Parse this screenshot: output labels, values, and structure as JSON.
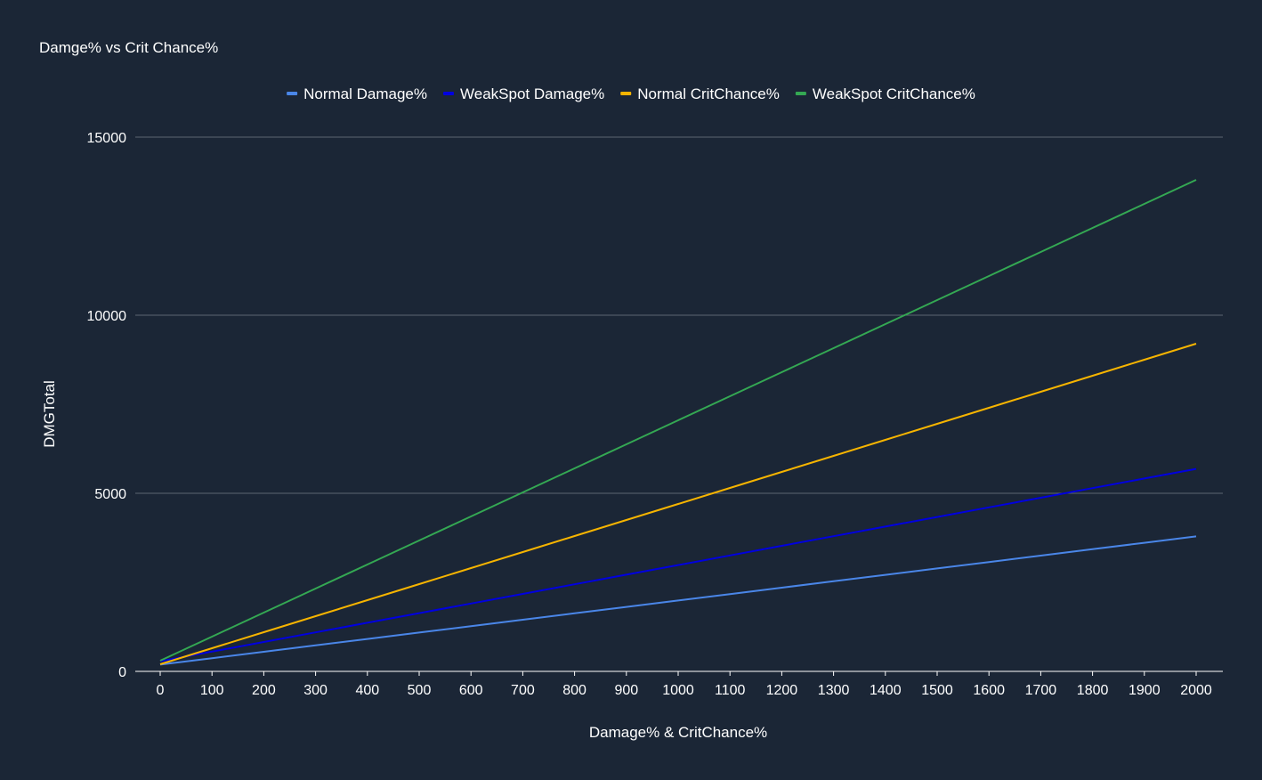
{
  "chart_data": {
    "type": "line",
    "title": "Damge% vs Crit Chance%",
    "xlabel": "Damage% & CritChance%",
    "ylabel": "DMGTotal",
    "x": [
      0,
      100,
      200,
      300,
      400,
      500,
      600,
      700,
      800,
      900,
      1000,
      1100,
      1200,
      1300,
      1400,
      1500,
      1600,
      1700,
      1800,
      1900,
      2000
    ],
    "x_ticks": [
      "0",
      "100",
      "200",
      "300",
      "400",
      "500",
      "600",
      "700",
      "800",
      "900",
      "1000",
      "1100",
      "1200",
      "1300",
      "1400",
      "1500",
      "1600",
      "1700",
      "1800",
      "1900",
      "2000"
    ],
    "y_ticks": [
      "0",
      "5000",
      "10000",
      "15000"
    ],
    "xlim": [
      0,
      2000
    ],
    "ylim": [
      0,
      15000
    ],
    "grid": true,
    "legend_position": "top",
    "series": [
      {
        "name": "Normal Damage%",
        "color": "#4a86e8",
        "values": [
          190,
          370,
          550,
          730,
          910,
          1090,
          1270,
          1450,
          1630,
          1810,
          1990,
          2170,
          2350,
          2530,
          2710,
          2890,
          3070,
          3250,
          3430,
          3610,
          3790
        ]
      },
      {
        "name": "WeakSpot Damage%",
        "color": "#0000e0",
        "values": [
          285,
          555,
          825,
          1095,
          1365,
          1635,
          1905,
          2175,
          2445,
          2715,
          2985,
          3255,
          3525,
          3795,
          4065,
          4335,
          4605,
          4875,
          5145,
          5415,
          5685
        ]
      },
      {
        "name": "Normal CritChance%",
        "color": "#f6b400",
        "values": [
          200,
          650,
          1100,
          1550,
          2000,
          2450,
          2900,
          3350,
          3800,
          4250,
          4700,
          5150,
          5600,
          6050,
          6500,
          6950,
          7400,
          7850,
          8300,
          8750,
          9200
        ]
      },
      {
        "name": "WeakSpot CritChance%",
        "color": "#34a853",
        "values": [
          300,
          975,
          1650,
          2325,
          3000,
          3675,
          4350,
          5025,
          5700,
          6375,
          7050,
          7725,
          8400,
          9075,
          9750,
          10425,
          11100,
          11775,
          12450,
          13125,
          13800
        ]
      }
    ]
  }
}
